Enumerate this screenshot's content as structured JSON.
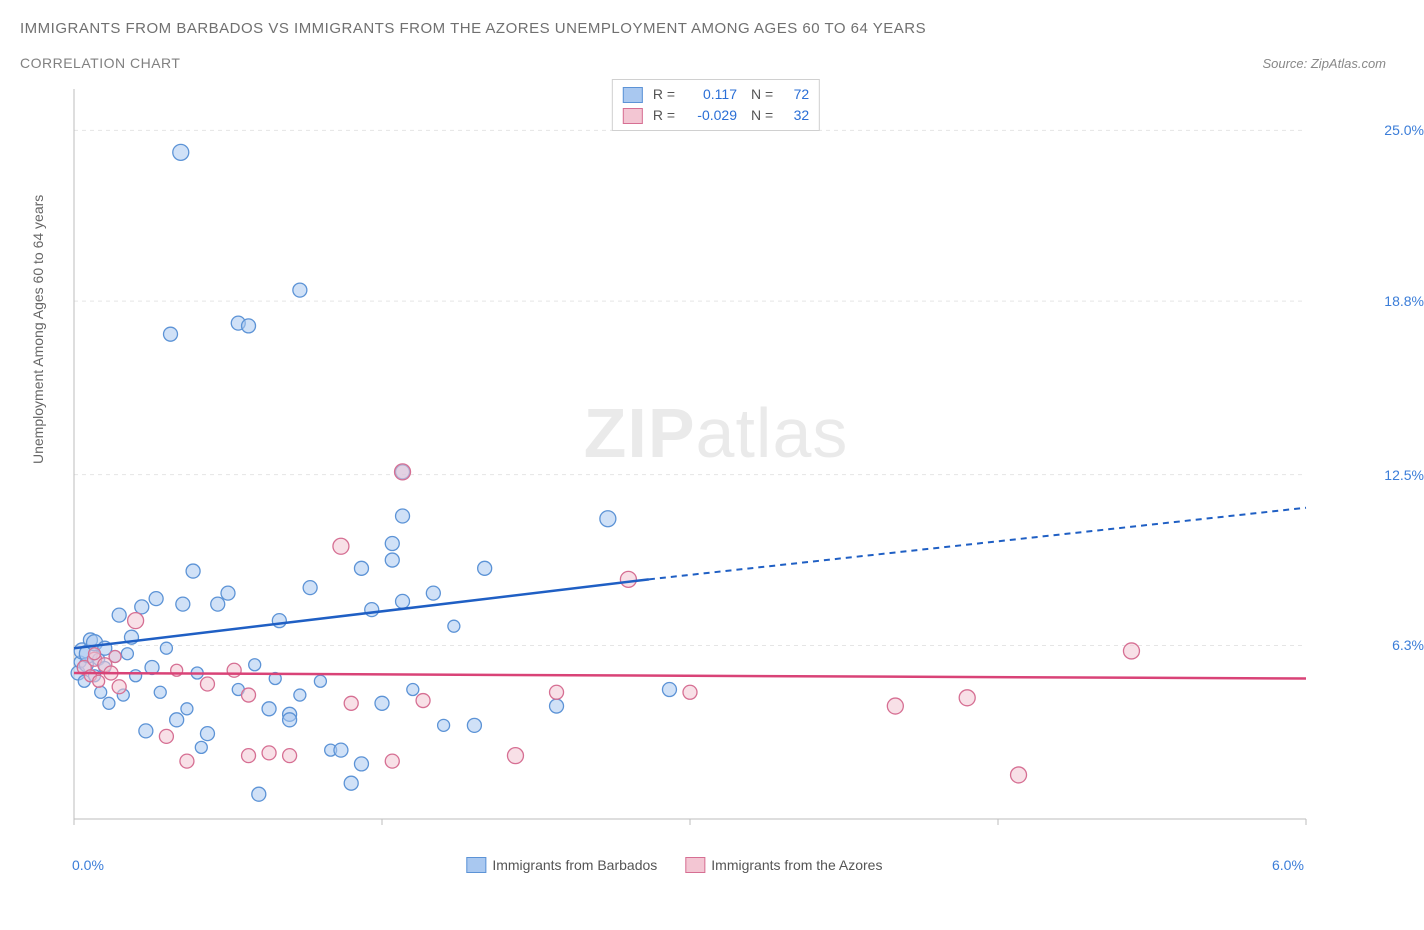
{
  "title": "IMMIGRANTS FROM BARBADOS VS IMMIGRANTS FROM THE AZORES UNEMPLOYMENT AMONG AGES 60 TO 64 YEARS",
  "subtitle": "CORRELATION CHART",
  "source": "Source: ZipAtlas.com",
  "ylabel": "Unemployment Among Ages 60 to 64 years",
  "watermark_bold": "ZIP",
  "watermark_rest": "atlas",
  "xlim": [
    0.0,
    6.0
  ],
  "ylim": [
    0.0,
    26.5
  ],
  "x_ticks": [
    0.0,
    1.5,
    3.0,
    4.5,
    6.0
  ],
  "x_tick_labels": {
    "0": "0.0%",
    "6": "6.0%"
  },
  "y_ticks": [
    6.3,
    12.5,
    18.8,
    25.0
  ],
  "y_tick_labels": [
    "6.3%",
    "12.5%",
    "18.8%",
    "25.0%"
  ],
  "grid_color": "#e5e5e5",
  "axis_color": "#bdbdbd",
  "series": [
    {
      "name": "Immigrants from Barbados",
      "color_fill": "#a9c8f0",
      "color_stroke": "#5c93d6",
      "line_color": "#1f5fc4",
      "R": "0.117",
      "N": "72",
      "trend": {
        "x1": 0.0,
        "y1": 6.2,
        "x_solid_end": 2.8,
        "y_solid_end": 8.7,
        "x2": 6.0,
        "y2": 11.3
      },
      "points": [
        {
          "x": 0.02,
          "y": 5.3,
          "r": 7
        },
        {
          "x": 0.03,
          "y": 5.7,
          "r": 6
        },
        {
          "x": 0.04,
          "y": 6.1,
          "r": 8
        },
        {
          "x": 0.05,
          "y": 5.0,
          "r": 6
        },
        {
          "x": 0.06,
          "y": 5.6,
          "r": 7
        },
        {
          "x": 0.07,
          "y": 6.0,
          "r": 9
        },
        {
          "x": 0.08,
          "y": 6.5,
          "r": 7
        },
        {
          "x": 0.1,
          "y": 5.2,
          "r": 6
        },
        {
          "x": 0.1,
          "y": 6.4,
          "r": 8
        },
        {
          "x": 0.12,
          "y": 5.8,
          "r": 6
        },
        {
          "x": 0.13,
          "y": 4.6,
          "r": 6
        },
        {
          "x": 0.15,
          "y": 6.2,
          "r": 7
        },
        {
          "x": 0.15,
          "y": 5.5,
          "r": 6
        },
        {
          "x": 0.17,
          "y": 4.2,
          "r": 6
        },
        {
          "x": 0.2,
          "y": 5.9,
          "r": 6
        },
        {
          "x": 0.22,
          "y": 7.4,
          "r": 7
        },
        {
          "x": 0.24,
          "y": 4.5,
          "r": 6
        },
        {
          "x": 0.26,
          "y": 6.0,
          "r": 6
        },
        {
          "x": 0.28,
          "y": 6.6,
          "r": 7
        },
        {
          "x": 0.3,
          "y": 5.2,
          "r": 6
        },
        {
          "x": 0.33,
          "y": 7.7,
          "r": 7
        },
        {
          "x": 0.35,
          "y": 3.2,
          "r": 7
        },
        {
          "x": 0.38,
          "y": 5.5,
          "r": 7
        },
        {
          "x": 0.4,
          "y": 8.0,
          "r": 7
        },
        {
          "x": 0.42,
          "y": 4.6,
          "r": 6
        },
        {
          "x": 0.45,
          "y": 6.2,
          "r": 6
        },
        {
          "x": 0.47,
          "y": 17.6,
          "r": 7
        },
        {
          "x": 0.5,
          "y": 3.6,
          "r": 7
        },
        {
          "x": 0.52,
          "y": 24.2,
          "r": 8
        },
        {
          "x": 0.53,
          "y": 7.8,
          "r": 7
        },
        {
          "x": 0.55,
          "y": 4.0,
          "r": 6
        },
        {
          "x": 0.58,
          "y": 9.0,
          "r": 7
        },
        {
          "x": 0.6,
          "y": 5.3,
          "r": 6
        },
        {
          "x": 0.62,
          "y": 2.6,
          "r": 6
        },
        {
          "x": 0.65,
          "y": 3.1,
          "r": 7
        },
        {
          "x": 0.7,
          "y": 7.8,
          "r": 7
        },
        {
          "x": 0.75,
          "y": 8.2,
          "r": 7
        },
        {
          "x": 0.8,
          "y": 4.7,
          "r": 6
        },
        {
          "x": 0.8,
          "y": 18.0,
          "r": 7
        },
        {
          "x": 0.85,
          "y": 17.9,
          "r": 7
        },
        {
          "x": 0.88,
          "y": 5.6,
          "r": 6
        },
        {
          "x": 0.9,
          "y": 0.9,
          "r": 7
        },
        {
          "x": 0.95,
          "y": 4.0,
          "r": 7
        },
        {
          "x": 0.98,
          "y": 5.1,
          "r": 6
        },
        {
          "x": 1.0,
          "y": 7.2,
          "r": 7
        },
        {
          "x": 1.05,
          "y": 3.8,
          "r": 7
        },
        {
          "x": 1.05,
          "y": 3.6,
          "r": 7
        },
        {
          "x": 1.1,
          "y": 19.2,
          "r": 7
        },
        {
          "x": 1.1,
          "y": 4.5,
          "r": 6
        },
        {
          "x": 1.15,
          "y": 8.4,
          "r": 7
        },
        {
          "x": 1.2,
          "y": 5.0,
          "r": 6
        },
        {
          "x": 1.25,
          "y": 2.5,
          "r": 6
        },
        {
          "x": 1.3,
          "y": 2.5,
          "r": 7
        },
        {
          "x": 1.4,
          "y": 9.1,
          "r": 7
        },
        {
          "x": 1.4,
          "y": 2.0,
          "r": 7
        },
        {
          "x": 1.45,
          "y": 7.6,
          "r": 7
        },
        {
          "x": 1.5,
          "y": 4.2,
          "r": 7
        },
        {
          "x": 1.55,
          "y": 10.0,
          "r": 7
        },
        {
          "x": 1.55,
          "y": 9.4,
          "r": 7
        },
        {
          "x": 1.6,
          "y": 12.6,
          "r": 7
        },
        {
          "x": 1.6,
          "y": 11.0,
          "r": 7
        },
        {
          "x": 1.6,
          "y": 7.9,
          "r": 7
        },
        {
          "x": 1.65,
          "y": 4.7,
          "r": 6
        },
        {
          "x": 1.75,
          "y": 8.2,
          "r": 7
        },
        {
          "x": 1.8,
          "y": 3.4,
          "r": 6
        },
        {
          "x": 1.85,
          "y": 7.0,
          "r": 6
        },
        {
          "x": 1.95,
          "y": 3.4,
          "r": 7
        },
        {
          "x": 2.0,
          "y": 9.1,
          "r": 7
        },
        {
          "x": 2.35,
          "y": 4.1,
          "r": 7
        },
        {
          "x": 2.6,
          "y": 10.9,
          "r": 8
        },
        {
          "x": 2.9,
          "y": 4.7,
          "r": 7
        },
        {
          "x": 1.35,
          "y": 1.3,
          "r": 7
        }
      ]
    },
    {
      "name": "Immigrants from the Azores",
      "color_fill": "#f3c6d3",
      "color_stroke": "#d66f93",
      "line_color": "#d94377",
      "R": "-0.029",
      "N": "32",
      "trend": {
        "x1": 0.0,
        "y1": 5.3,
        "x_solid_end": 6.0,
        "y_solid_end": 5.1,
        "x2": 6.0,
        "y2": 5.1
      },
      "points": [
        {
          "x": 0.05,
          "y": 5.5,
          "r": 7
        },
        {
          "x": 0.08,
          "y": 5.2,
          "r": 6
        },
        {
          "x": 0.1,
          "y": 5.8,
          "r": 7
        },
        {
          "x": 0.12,
          "y": 5.0,
          "r": 6
        },
        {
          "x": 0.15,
          "y": 5.6,
          "r": 7
        },
        {
          "x": 0.18,
          "y": 5.3,
          "r": 7
        },
        {
          "x": 0.2,
          "y": 5.9,
          "r": 6
        },
        {
          "x": 0.22,
          "y": 4.8,
          "r": 7
        },
        {
          "x": 0.3,
          "y": 7.2,
          "r": 8
        },
        {
          "x": 0.45,
          "y": 3.0,
          "r": 7
        },
        {
          "x": 0.5,
          "y": 5.4,
          "r": 6
        },
        {
          "x": 0.55,
          "y": 2.1,
          "r": 7
        },
        {
          "x": 0.65,
          "y": 4.9,
          "r": 7
        },
        {
          "x": 0.78,
          "y": 5.4,
          "r": 7
        },
        {
          "x": 0.85,
          "y": 2.3,
          "r": 7
        },
        {
          "x": 0.85,
          "y": 4.5,
          "r": 7
        },
        {
          "x": 0.95,
          "y": 2.4,
          "r": 7
        },
        {
          "x": 1.3,
          "y": 9.9,
          "r": 8
        },
        {
          "x": 1.35,
          "y": 4.2,
          "r": 7
        },
        {
          "x": 1.55,
          "y": 2.1,
          "r": 7
        },
        {
          "x": 1.6,
          "y": 12.6,
          "r": 8
        },
        {
          "x": 1.7,
          "y": 4.3,
          "r": 7
        },
        {
          "x": 2.15,
          "y": 2.3,
          "r": 8
        },
        {
          "x": 2.35,
          "y": 4.6,
          "r": 7
        },
        {
          "x": 2.7,
          "y": 8.7,
          "r": 8
        },
        {
          "x": 3.0,
          "y": 4.6,
          "r": 7
        },
        {
          "x": 4.0,
          "y": 4.1,
          "r": 8
        },
        {
          "x": 4.35,
          "y": 4.4,
          "r": 8
        },
        {
          "x": 4.6,
          "y": 1.6,
          "r": 8
        },
        {
          "x": 5.15,
          "y": 6.1,
          "r": 8
        },
        {
          "x": 1.05,
          "y": 2.3,
          "r": 7
        },
        {
          "x": 0.1,
          "y": 6.0,
          "r": 6
        }
      ]
    }
  ],
  "bottom_legend": [
    {
      "label": "Immigrants from Barbados",
      "fill": "#a9c8f0",
      "stroke": "#5c93d6"
    },
    {
      "label": "Immigrants from the Azores",
      "fill": "#f3c6d3",
      "stroke": "#d66f93"
    }
  ]
}
